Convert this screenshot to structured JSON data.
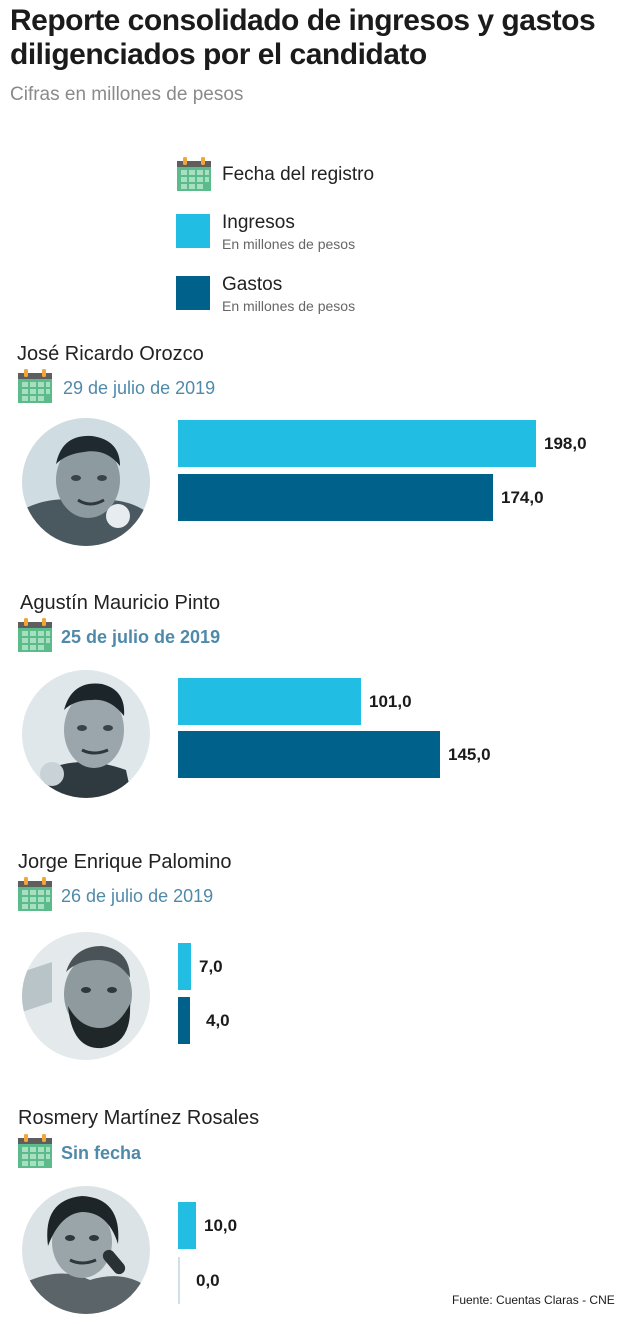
{
  "title": "Reporte consolidado de ingresos y gastos diligenciados por el candidato",
  "subtitle": "Cifras en millones de pesos",
  "legend": {
    "date_label": "Fecha del registro",
    "income_label": "Ingresos",
    "income_sub": "En millones de pesos",
    "expense_label": "Gastos",
    "expense_sub": "En millones de pesos"
  },
  "colors": {
    "income": "#22bde3",
    "expense": "#00628a",
    "calendar": "#5cbb8a",
    "date_text": "#4f8aaa"
  },
  "icons": [
    "calendar-icon"
  ],
  "candidates": [
    {
      "name": "José Ricardo Orozco",
      "date": "29 de julio de 2019",
      "income_label": "198,0",
      "expense_label": "174,0"
    },
    {
      "name": "Agustín Mauricio Pinto",
      "date": "25 de julio de 2019",
      "income_label": "101,0",
      "expense_label": "145,0"
    },
    {
      "name": "Jorge Enrique Palomino",
      "date": "26 de julio de 2019",
      "income_label": "7,0",
      "expense_label": "4,0"
    },
    {
      "name": "Rosmery Martínez Rosales",
      "date": "Sin fecha",
      "income_label": "10,0",
      "expense_label": "0,0"
    }
  ],
  "chart_data": {
    "type": "bar",
    "orientation": "horizontal",
    "categories": [
      "José Ricardo Orozco",
      "Agustín Mauricio Pinto",
      "Jorge Enrique Palomino",
      "Rosmery Martínez Rosales"
    ],
    "series": [
      {
        "name": "Ingresos",
        "values": [
          198.0,
          101.0,
          7.0,
          10.0
        ]
      },
      {
        "name": "Gastos",
        "values": [
          174.0,
          145.0,
          4.0,
          0.0
        ]
      }
    ],
    "xlim": [
      0,
      198
    ],
    "grid": false
  },
  "source": "Fuente: Cuentas Claras - CNE"
}
